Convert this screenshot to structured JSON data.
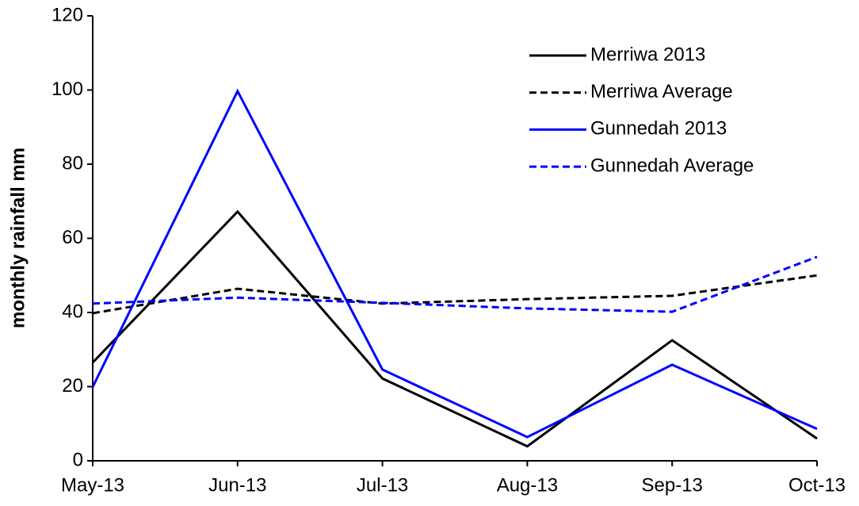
{
  "chart_data": {
    "type": "line",
    "y_label": "monthly rainfall mm",
    "categories": [
      "May-13",
      "Jun-13",
      "Jul-13",
      "Aug-13",
      "Sep-13",
      "Oct-13"
    ],
    "series": [
      {
        "name": "Merriwa 2013",
        "color": "#000000",
        "style": "solid",
        "values": [
          26.5,
          67.2,
          22.2,
          3.9,
          32.5,
          6.0
        ]
      },
      {
        "name": "Merriwa Average",
        "color": "#000000",
        "style": "dashed",
        "values": [
          39.8,
          46.4,
          42.4,
          43.6,
          44.5,
          50.0
        ]
      },
      {
        "name": "Gunnedah 2013",
        "color": "#0000ff",
        "style": "solid",
        "values": [
          19.9,
          99.7,
          24.6,
          6.4,
          25.9,
          8.6
        ]
      },
      {
        "name": "Gunnedah Average",
        "color": "#0000ff",
        "style": "dashed",
        "values": [
          42.4,
          44.0,
          42.6,
          41.1,
          40.2,
          55.0
        ]
      }
    ],
    "ylim": [
      0,
      120
    ],
    "yticks": [
      0,
      20,
      40,
      60,
      80,
      100,
      120
    ],
    "grid": false,
    "legend": "upper right"
  }
}
